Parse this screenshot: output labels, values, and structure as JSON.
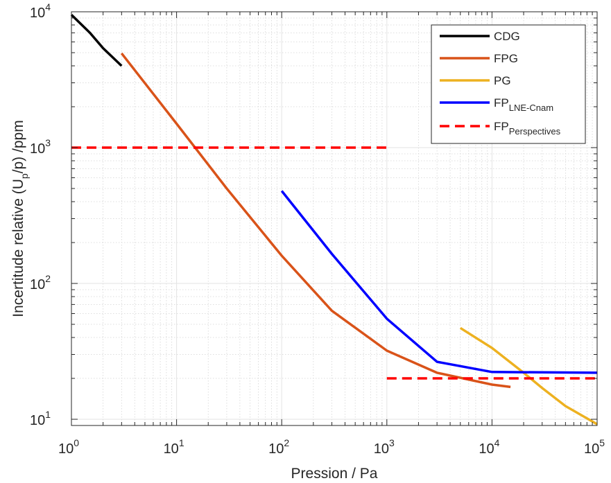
{
  "chart_data": {
    "type": "line",
    "xscale": "log",
    "yscale": "log",
    "xlim": [
      1,
      100000
    ],
    "ylim": [
      9,
      10000
    ],
    "xlabel": "Pression / Pa",
    "ylabel_parts": {
      "pre": "Incertitude relative (U",
      "sub": "p",
      "post": "/p) /ppm"
    },
    "grid": true,
    "minor_grid": true,
    "legend_position": "top-right",
    "x_ticks": [
      {
        "value": 1,
        "base": "10",
        "exp": "0"
      },
      {
        "value": 10,
        "base": "10",
        "exp": "1"
      },
      {
        "value": 100,
        "base": "10",
        "exp": "2"
      },
      {
        "value": 1000,
        "base": "10",
        "exp": "3"
      },
      {
        "value": 10000,
        "base": "10",
        "exp": "4"
      },
      {
        "value": 100000,
        "base": "10",
        "exp": "5"
      }
    ],
    "y_ticks": [
      {
        "value": 10,
        "base": "10",
        "exp": "1"
      },
      {
        "value": 100,
        "base": "10",
        "exp": "2"
      },
      {
        "value": 1000,
        "base": "10",
        "exp": "3"
      },
      {
        "value": 10000,
        "base": "10",
        "exp": "4"
      }
    ],
    "series": [
      {
        "name": "CDG",
        "color": "#000000",
        "dash": "solid",
        "points": [
          [
            1,
            9500
          ],
          [
            1.5,
            7000
          ],
          [
            2,
            5400
          ],
          [
            3,
            4000
          ]
        ]
      },
      {
        "name": "FPG",
        "color": "#d95319",
        "dash": "solid",
        "points": [
          [
            3,
            4950
          ],
          [
            10,
            1500
          ],
          [
            30,
            500
          ],
          [
            100,
            160
          ],
          [
            300,
            63
          ],
          [
            1000,
            32
          ],
          [
            3000,
            22
          ],
          [
            10000,
            18
          ],
          [
            15000,
            17.3
          ]
        ]
      },
      {
        "name": "PG",
        "color": "#edb120",
        "dash": "solid",
        "points": [
          [
            5000,
            47
          ],
          [
            10000,
            33.5
          ],
          [
            20000,
            22
          ],
          [
            30000,
            17
          ],
          [
            50000,
            12.5
          ],
          [
            100000,
            9.2
          ]
        ]
      },
      {
        "name": "FP",
        "name_sub": "LNE-Cnam",
        "color": "#0000ff",
        "dash": "solid",
        "points": [
          [
            100,
            480
          ],
          [
            300,
            165
          ],
          [
            1000,
            55
          ],
          [
            3000,
            26.5
          ],
          [
            10000,
            22.3
          ],
          [
            100000,
            22
          ]
        ]
      },
      {
        "name": "FP",
        "name_sub": "Perspectives",
        "color": "#ff0000",
        "dash": "dashed",
        "segments": [
          [
            [
              1,
              1000
            ],
            [
              1000,
              1000
            ]
          ],
          [
            [
              1000,
              20
            ],
            [
              100000,
              20
            ]
          ]
        ]
      }
    ]
  }
}
